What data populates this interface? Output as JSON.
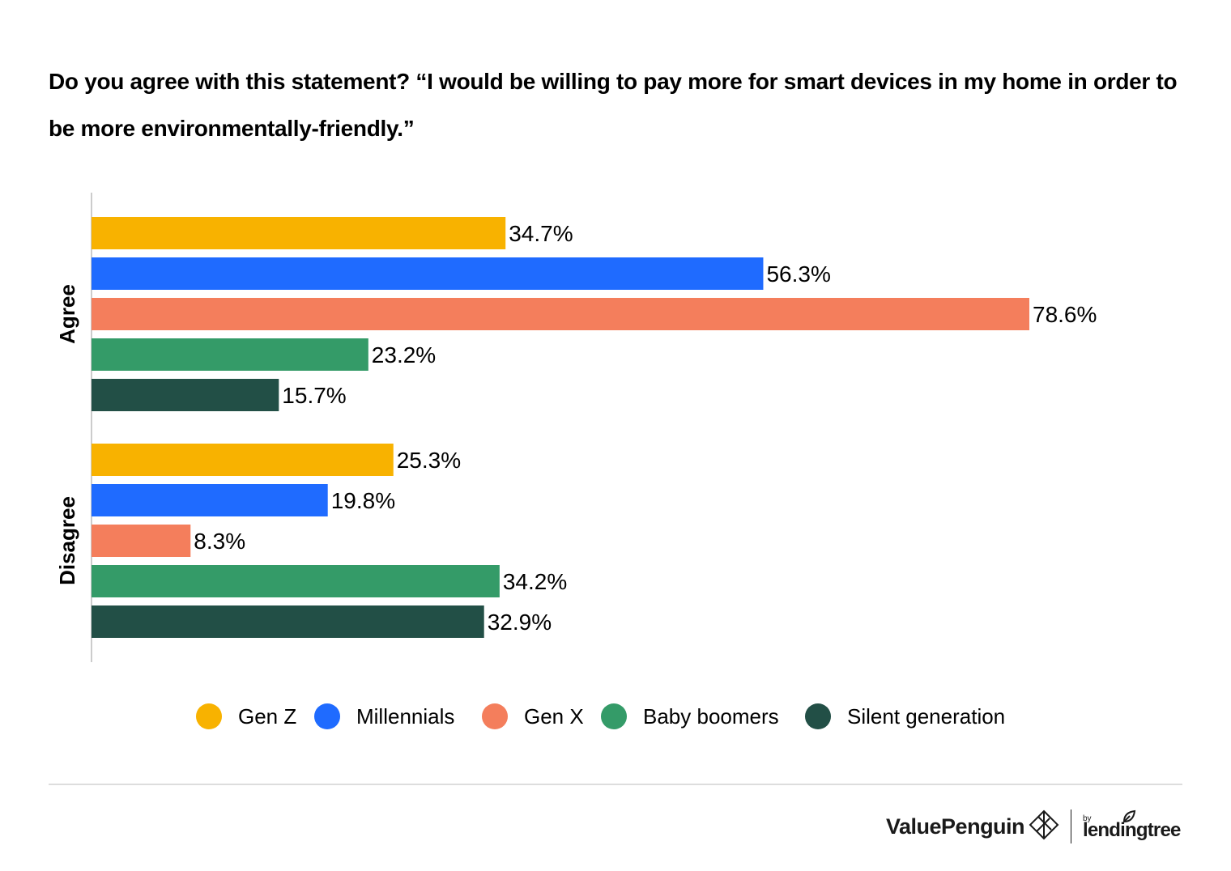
{
  "chart_data": {
    "type": "bar",
    "orientation": "horizontal",
    "title": "Do you agree with this statement? “I would be willing to pay more for smart devices in my home in order to be more environmentally-friendly.”",
    "categories": [
      "Agree",
      "Disagree"
    ],
    "series": [
      {
        "name": "Gen Z",
        "color": "#F8B200",
        "values": [
          34.7,
          25.3
        ],
        "labels": [
          "34.7%",
          "25.3%"
        ]
      },
      {
        "name": "Millennials",
        "color": "#1F6BFF",
        "values": [
          56.3,
          19.8
        ],
        "labels": [
          "56.3%",
          "19.8%"
        ]
      },
      {
        "name": "Gen X",
        "color": "#F47E5C",
        "values": [
          78.6,
          8.3
        ],
        "labels": [
          "78.6%",
          "8.3%"
        ]
      },
      {
        "name": "Baby boomers",
        "color": "#349B68",
        "values": [
          23.2,
          34.2
        ],
        "labels": [
          "23.2%",
          "34.2%"
        ]
      },
      {
        "name": "Silent generation",
        "color": "#224F46",
        "values": [
          15.7,
          32.9
        ],
        "labels": [
          "15.7%",
          "32.9%"
        ]
      }
    ],
    "xlim": [
      0,
      80
    ],
    "grid": false,
    "legend_position": "bottom"
  },
  "footer": {
    "brand": "ValuePenguin",
    "by": "by",
    "partner": "lendingtree",
    "brand_icon": "penguin-diamond-icon",
    "partner_icon": "leaf-icon"
  }
}
